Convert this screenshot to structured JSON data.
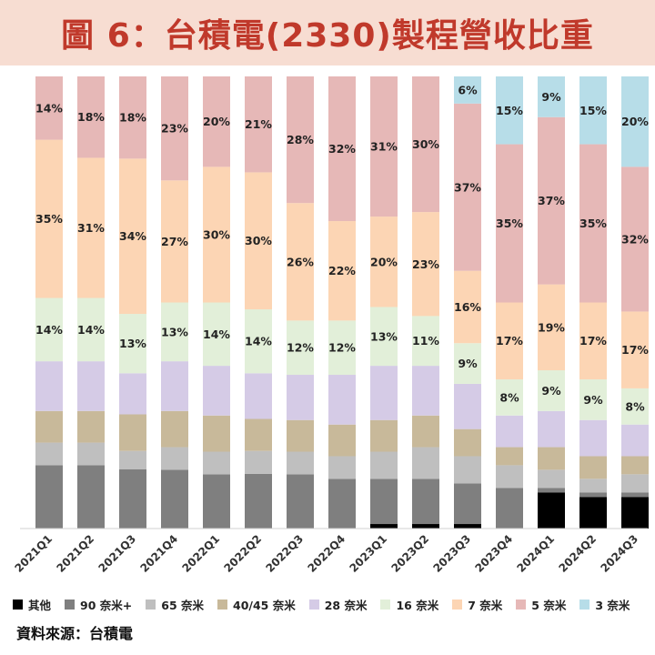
{
  "title": "圖 6：台積電(2330)製程營收比重",
  "source": "資料來源：台積電",
  "colors": {
    "title_bg": "#f7ddd2",
    "title_text": "#c0392b"
  },
  "chart_data": {
    "type": "bar",
    "stacked": true,
    "normalized": true,
    "ylim": [
      0,
      100
    ],
    "grid": false,
    "legend_placement": "bottom",
    "categories": [
      "2021Q1",
      "2021Q2",
      "2021Q3",
      "2021Q4",
      "2022Q1",
      "2022Q2",
      "2022Q3",
      "2022Q4",
      "2023Q1",
      "2023Q2",
      "2023Q3",
      "2023Q4",
      "2024Q1",
      "2024Q2",
      "2024Q3"
    ],
    "series": [
      {
        "name": "其他",
        "color": "#000000",
        "values": [
          0,
          0,
          0,
          0,
          0,
          0,
          0,
          0,
          1,
          1,
          1,
          0,
          8,
          7,
          7
        ],
        "show_labels": false
      },
      {
        "name": "90 奈米+",
        "color": "#7f7f7f",
        "values": [
          14,
          14,
          13,
          13,
          12,
          12,
          12,
          11,
          10,
          10,
          9,
          9,
          1,
          1,
          1
        ],
        "show_labels": false
      },
      {
        "name": "65 奈米",
        "color": "#bfbfbf",
        "values": [
          5,
          5,
          4,
          5,
          5,
          5,
          5,
          5,
          6,
          7,
          6,
          5,
          4,
          3,
          4
        ],
        "show_labels": false
      },
      {
        "name": "40/45 奈米",
        "color": "#c8b99a",
        "values": [
          7,
          7,
          8,
          8,
          8,
          7,
          7,
          7,
          7,
          7,
          6,
          4,
          5,
          5,
          4
        ],
        "show_labels": false
      },
      {
        "name": "28 奈米",
        "color": "#d5cbe6",
        "values": [
          11,
          11,
          9,
          11,
          11,
          10,
          10,
          11,
          12,
          11,
          10,
          7,
          8,
          8,
          7
        ],
        "show_labels": false
      },
      {
        "name": "16 奈米",
        "color": "#e2efd9",
        "values": [
          14,
          14,
          13,
          13,
          14,
          14,
          12,
          12,
          13,
          11,
          9,
          8,
          9,
          9,
          8
        ],
        "show_labels": true
      },
      {
        "name": "7 奈米",
        "color": "#fcd5b4",
        "values": [
          35,
          31,
          34,
          27,
          30,
          30,
          26,
          22,
          20,
          23,
          16,
          17,
          19,
          17,
          17
        ],
        "show_labels": true
      },
      {
        "name": "5 奈米",
        "color": "#e6b8b7",
        "values": [
          14,
          18,
          18,
          23,
          20,
          21,
          28,
          32,
          31,
          30,
          37,
          35,
          37,
          35,
          32
        ],
        "show_labels": true
      },
      {
        "name": "3 奈米",
        "color": "#b7dde8",
        "values": [
          0,
          0,
          0,
          0,
          0,
          0,
          0,
          0,
          0,
          0,
          6,
          15,
          9,
          15,
          20
        ],
        "show_labels": true
      }
    ]
  }
}
